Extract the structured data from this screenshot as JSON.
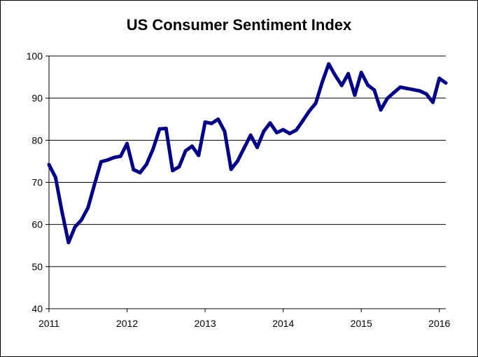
{
  "chart_data": {
    "type": "line",
    "title": "US Consumer Sentiment Index",
    "xlabel": "",
    "ylabel": "",
    "xlim": [
      2011,
      2016.083
    ],
    "ylim": [
      40,
      100
    ],
    "grid": true,
    "legend": "none",
    "x_ticks": [
      2011,
      2012,
      2013,
      2014,
      2015,
      2016
    ],
    "x_tick_labels": [
      "2011",
      "2012",
      "2013",
      "2014",
      "2015",
      "2016"
    ],
    "y_ticks": [
      40,
      50,
      60,
      70,
      80,
      90,
      100
    ],
    "y_tick_labels": [
      "40",
      "50",
      "60",
      "70",
      "80",
      "90",
      "100"
    ],
    "series": [
      {
        "name": "US Consumer Sentiment Index",
        "color": "#000080",
        "x": [
          2011.0,
          2011.083,
          2011.167,
          2011.25,
          2011.333,
          2011.417,
          2011.5,
          2011.583,
          2011.667,
          2011.75,
          2011.833,
          2011.917,
          2012.0,
          2012.083,
          2012.167,
          2012.25,
          2012.333,
          2012.417,
          2012.5,
          2012.583,
          2012.667,
          2012.75,
          2012.833,
          2012.917,
          2013.0,
          2013.083,
          2013.167,
          2013.25,
          2013.333,
          2013.417,
          2013.5,
          2013.583,
          2013.667,
          2013.75,
          2013.833,
          2013.917,
          2014.0,
          2014.083,
          2014.167,
          2014.25,
          2014.333,
          2014.417,
          2014.5,
          2014.583,
          2014.667,
          2014.75,
          2014.833,
          2014.917,
          2015.0,
          2015.083,
          2015.167,
          2015.25,
          2015.333,
          2015.417,
          2015.5,
          2015.583,
          2015.667,
          2015.75,
          2015.833,
          2015.917,
          2016.0,
          2016.083
        ],
        "values": [
          74.2,
          71.2,
          63.0,
          55.7,
          59.4,
          61.1,
          64.0,
          69.5,
          74.9,
          75.3,
          75.9,
          76.2,
          79.2,
          73.0,
          72.3,
          74.3,
          77.9,
          82.7,
          82.8,
          72.8,
          73.7,
          77.5,
          78.6,
          76.4,
          84.3,
          84.0,
          85.0,
          82.1,
          73.1,
          75.1,
          78.2,
          81.2,
          78.3,
          82.1,
          84.1,
          81.8,
          82.5,
          81.6,
          82.4,
          84.6,
          86.9,
          88.8,
          93.8,
          98.1,
          95.4,
          93.0,
          95.8,
          90.7,
          96.1,
          93.1,
          91.9,
          87.2,
          89.9,
          91.3,
          92.6,
          92.3,
          92.0,
          91.7,
          91.0,
          89.0,
          94.7,
          93.6
        ]
      }
    ]
  }
}
